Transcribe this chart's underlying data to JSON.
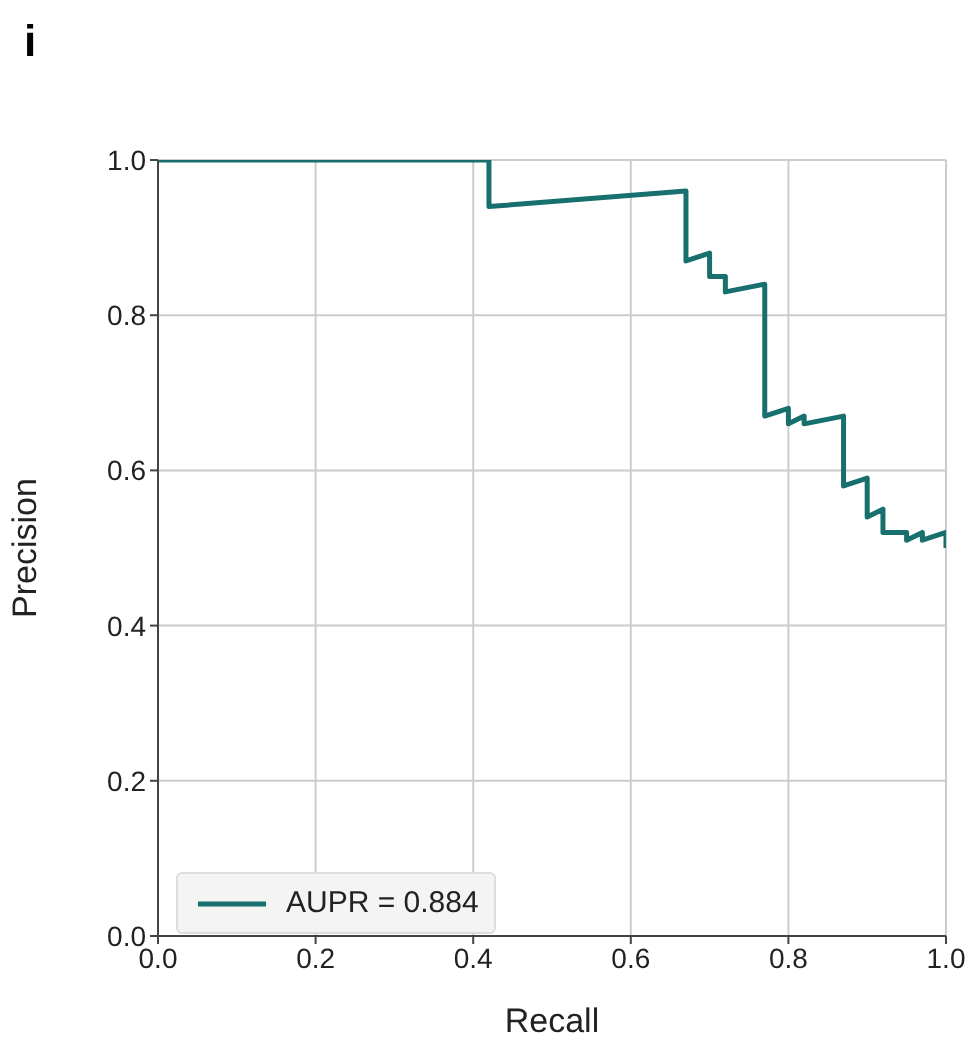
{
  "chart_data": {
    "type": "line",
    "title": "i",
    "xlabel": "Recall",
    "ylabel": "Precision",
    "xlim": [
      0,
      1
    ],
    "ylim": [
      0,
      1
    ],
    "xticks": [
      {
        "value": 0,
        "label": "0.0"
      },
      0.2,
      0.4,
      0.6,
      0.8,
      {
        "value": 1,
        "label": "1.0"
      }
    ],
    "yticks": [
      {
        "value": 0,
        "label": "0.0"
      },
      0.2,
      0.4,
      0.6,
      0.8,
      {
        "value": 1,
        "label": "1.0"
      }
    ],
    "grid": true,
    "legend": "bottom left",
    "marker": "none",
    "line_style": "solid",
    "series": [
      {
        "name": "AUPR = 0.884",
        "color": "#17706e",
        "x": [
          0,
          0.42,
          0.42,
          0.67,
          0.67,
          0.7,
          0.7,
          0.72,
          0.72,
          0.77,
          0.77,
          0.8,
          0.8,
          0.82,
          0.82,
          0.87,
          0.87,
          0.9,
          0.9,
          0.92,
          0.92,
          0.95,
          0.95,
          0.97,
          0.97,
          1,
          1
        ],
        "values": [
          1,
          1,
          0.94,
          0.96,
          0.87,
          0.88,
          0.85,
          0.85,
          0.83,
          0.84,
          0.67,
          0.68,
          0.66,
          0.67,
          0.66,
          0.67,
          0.58,
          0.59,
          0.54,
          0.55,
          0.52,
          0.52,
          0.51,
          0.52,
          0.51,
          0.52,
          0.5
        ]
      }
    ]
  }
}
